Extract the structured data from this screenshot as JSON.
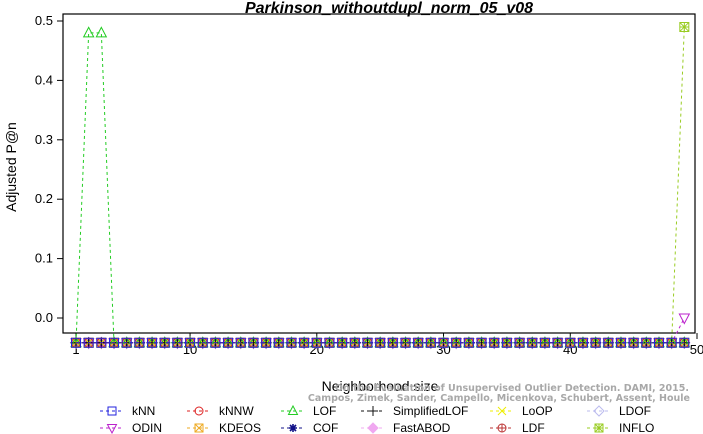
{
  "chart_data": {
    "type": "line",
    "title": "Parkinson_withoutdupl_norm_05_v08",
    "xlabel": "Neighborhood size",
    "ylabel": "Adjusted P@n",
    "xlim": [
      0,
      50
    ],
    "ylim": [
      -0.045,
      0.5
    ],
    "xticks": [
      1,
      10,
      20,
      30,
      40,
      50
    ],
    "yticks": [
      0.0,
      0.1,
      0.2,
      0.3,
      0.4,
      0.5
    ],
    "ytick_labels": [
      "0.0",
      "0.1",
      "0.2",
      "0.3",
      "0.4",
      "0.5"
    ],
    "x": [
      1,
      2,
      3,
      4,
      5,
      6,
      7,
      8,
      9,
      10,
      11,
      12,
      13,
      14,
      15,
      16,
      17,
      18,
      19,
      20,
      21,
      22,
      23,
      24,
      25,
      26,
      27,
      28,
      29,
      30,
      31,
      32,
      33,
      34,
      35,
      36,
      37,
      38,
      39,
      40,
      41,
      42,
      43,
      44,
      45,
      46,
      47,
      48,
      49
    ],
    "baseline": -0.0417,
    "series": [
      {
        "name": "kNN",
        "color": "#2222dd",
        "marker": "square",
        "overrides": {}
      },
      {
        "name": "kNNW",
        "color": "#dd2222",
        "marker": "circle",
        "overrides": {}
      },
      {
        "name": "LOF",
        "color": "#22cc22",
        "marker": "triangle",
        "overrides": {
          "2": 0.48,
          "3": 0.48
        }
      },
      {
        "name": "SimplifiedLOF",
        "color": "#111111",
        "marker": "plus",
        "overrides": {}
      },
      {
        "name": "LoOP",
        "color": "#eeee00",
        "marker": "cross",
        "overrides": {}
      },
      {
        "name": "LDOF",
        "color": "#bbbbee",
        "marker": "diamond",
        "overrides": {}
      },
      {
        "name": "ODIN",
        "color": "#bb22cc",
        "marker": "triangle-down",
        "overrides": {
          "49": 0.0
        }
      },
      {
        "name": "KDEOS",
        "color": "#eeaa22",
        "marker": "boxed-x",
        "overrides": {}
      },
      {
        "name": "COF",
        "color": "#111188",
        "marker": "star",
        "overrides": {}
      },
      {
        "name": "FastABOD",
        "color": "#f0a8f0",
        "marker": "diamond-filled",
        "overrides": {}
      },
      {
        "name": "LDF",
        "color": "#bb3333",
        "marker": "circle-plus",
        "overrides": {}
      },
      {
        "name": "INFLO",
        "color": "#99cc22",
        "marker": "boxed-star",
        "overrides": {
          "49": 0.49
        }
      }
    ],
    "legend_position": "bottom",
    "credit_lines": [
      "On the Evaluation of Unsupervised Outlier Detection. DAMI, 2015.",
      "Campos, Zimek, Sander, Campello, Micenkova, Schubert, Assent, Houle"
    ]
  }
}
